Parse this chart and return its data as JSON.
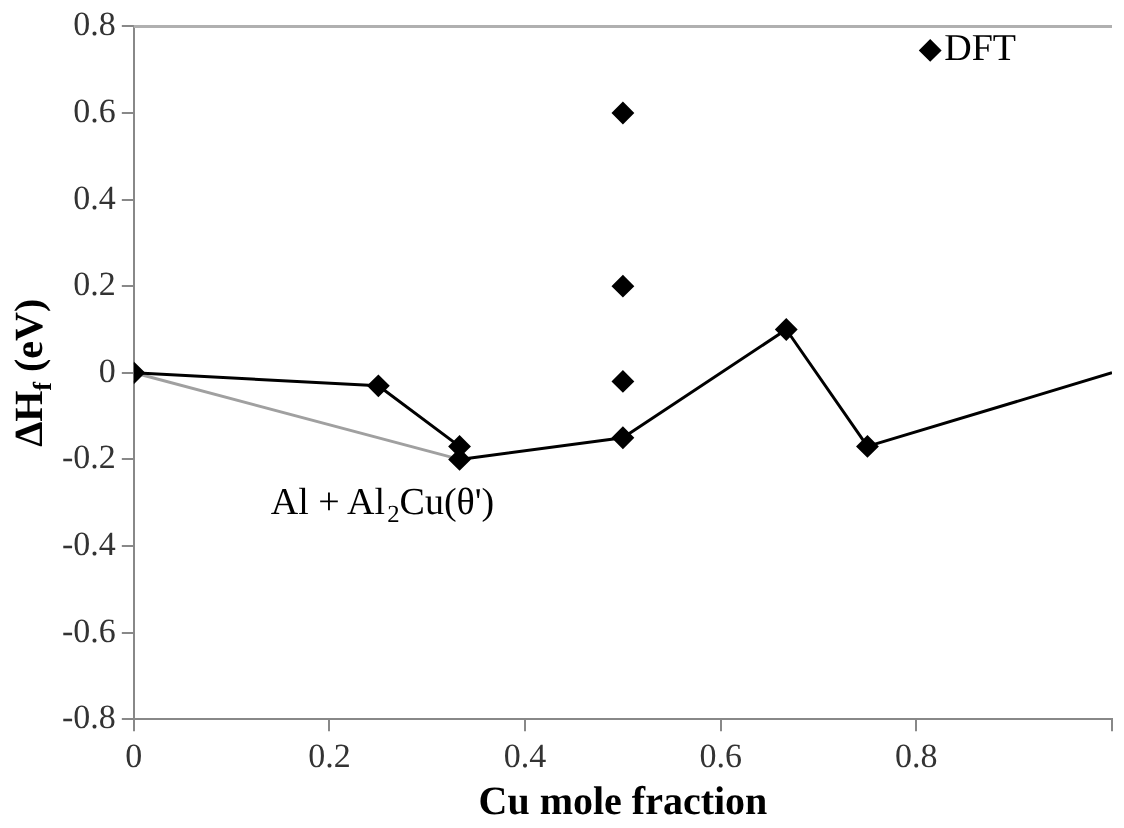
{
  "chart_data": {
    "type": "scatter",
    "xlabel": "Cu mole fraction",
    "ylabel": "ΔH$_{f}$ (eV)",
    "xlim": [
      0,
      1
    ],
    "xticks": [
      0,
      0.2,
      0.4,
      0.6,
      0.8,
      {
        "value": 1,
        "label": null
      }
    ],
    "ylim": [
      -0.8,
      0.8
    ],
    "yticks": [
      -0.8,
      -0.6,
      -0.4,
      -0.2,
      0,
      0.2,
      0.4,
      0.6,
      0.8
    ],
    "grid": false,
    "legend": "top right",
    "marker": "diamond",
    "series": [
      {
        "name": "DFT",
        "color": "#000000",
        "x": [
          0,
          0.25,
          0.333,
          0.333,
          0.5,
          0.5,
          0.5,
          0.5,
          0.667,
          0.75
        ],
        "values": [
          0,
          -0.03,
          -0.17,
          -0.2,
          0.6,
          0.2,
          -0.02,
          -0.15,
          0.1,
          -0.17
        ]
      },
      {
        "type": "line",
        "marker": "none",
        "color": "#000000",
        "x": [
          0,
          0.25,
          0.333,
          0.333,
          0.5,
          0.667,
          0.75,
          1
        ],
        "values": [
          0,
          -0.03,
          -0.17,
          -0.2,
          -0.15,
          0.1,
          -0.17,
          0
        ]
      },
      {
        "type": "line",
        "marker": "none",
        "color": "#a0a0a0",
        "x": [
          0,
          0.333
        ],
        "values": [
          0,
          -0.2
        ]
      }
    ],
    "annotations": [
      "Al + Al$_{2}$Cu(θ')"
    ]
  }
}
